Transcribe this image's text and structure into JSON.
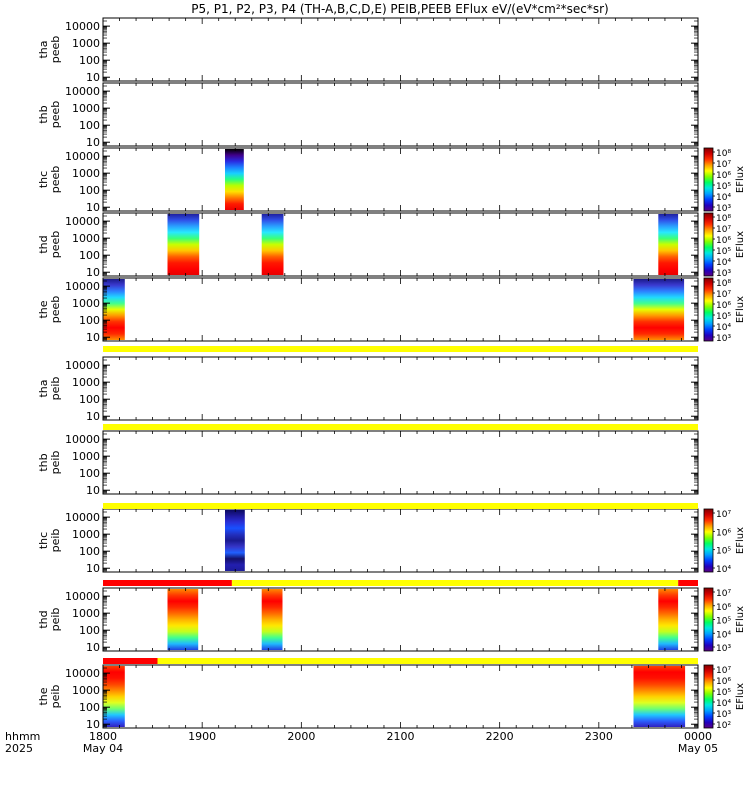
{
  "title": "P5, P1, P2, P3, P4 (TH-A,B,C,D,E) PEIB,PEEB EFlux eV/(eV*cm²*sec*sr)",
  "chart_data": {
    "type": "heatmap",
    "time_label_1": "hhmm",
    "time_label_2": "2025",
    "x_ticks": [
      "1800",
      "1900",
      "2000",
      "2100",
      "2200",
      "2300",
      "0000"
    ],
    "x_date_labels": [
      {
        "tick": "1800",
        "label": "May 04"
      },
      {
        "tick": "0000",
        "label": "May 05"
      }
    ],
    "x_range_hours": [
      18,
      24
    ],
    "y_scale": "log",
    "y_ticks": [
      "10",
      "100",
      "1000",
      "10000"
    ],
    "colorbar_label": "EFlux",
    "panels": [
      {
        "probe": "tha",
        "product": "peeb",
        "colorbar": null,
        "has_data": false,
        "data_windows": []
      },
      {
        "probe": "thb",
        "product": "peeb",
        "colorbar": null,
        "has_data": false,
        "data_windows": []
      },
      {
        "probe": "thc",
        "product": "peeb",
        "colorbar": [
          "10³",
          "10⁴",
          "10⁵",
          "10⁶",
          "10⁷",
          "10⁸"
        ],
        "has_data": true,
        "data_windows": [
          {
            "start": 19.23,
            "end": 19.42,
            "profile": "c"
          }
        ]
      },
      {
        "probe": "thd",
        "product": "peeb",
        "colorbar": [
          "10³",
          "10⁴",
          "10⁵",
          "10⁶",
          "10⁷",
          "10⁸"
        ],
        "has_data": true,
        "data_windows": [
          {
            "start": 18.65,
            "end": 18.97,
            "profile": "d"
          },
          {
            "start": 19.6,
            "end": 19.82,
            "profile": "d"
          },
          {
            "start": 23.6,
            "end": 23.8,
            "profile": "d"
          }
        ]
      },
      {
        "probe": "the",
        "product": "peeb",
        "colorbar": [
          "10³",
          "10⁴",
          "10⁵",
          "10⁶",
          "10⁷",
          "10⁸"
        ],
        "has_data": true,
        "data_windows": [
          {
            "start": 18.0,
            "end": 18.22,
            "profile": "e"
          },
          {
            "start": 23.35,
            "end": 23.86,
            "profile": "e"
          }
        ]
      },
      {
        "probe": "tha",
        "product": "peib",
        "colorbar": null,
        "has_data": false,
        "data_windows": []
      },
      {
        "probe": "thb",
        "product": "peib",
        "colorbar": null,
        "has_data": false,
        "data_windows": []
      },
      {
        "probe": "thc",
        "product": "peib",
        "colorbar": [
          "10⁴",
          "10⁵",
          "10⁶",
          "10⁷"
        ],
        "has_data": true,
        "data_windows": [
          {
            "start": 19.23,
            "end": 19.43,
            "profile": "ic"
          }
        ]
      },
      {
        "probe": "thd",
        "product": "peib",
        "colorbar": [
          "10³",
          "10⁴",
          "10⁵",
          "10⁶",
          "10⁷"
        ],
        "has_data": true,
        "data_windows": [
          {
            "start": 18.65,
            "end": 18.96,
            "profile": "id"
          },
          {
            "start": 19.6,
            "end": 19.81,
            "profile": "id"
          },
          {
            "start": 23.6,
            "end": 23.8,
            "profile": "id"
          }
        ]
      },
      {
        "probe": "the",
        "product": "peib",
        "colorbar": [
          "10²",
          "10³",
          "10⁴",
          "10⁵",
          "10⁶",
          "10⁷"
        ],
        "has_data": true,
        "data_windows": [
          {
            "start": 18.0,
            "end": 18.22,
            "profile": "ie"
          },
          {
            "start": 23.35,
            "end": 23.87,
            "profile": "ie"
          }
        ]
      }
    ],
    "status_bars": [
      {
        "after_panel": 5,
        "segments": [
          {
            "start": 18.0,
            "end": 24.0,
            "color": "#ffff00"
          }
        ]
      },
      {
        "after_panel": 6,
        "segments": [
          {
            "start": 18.0,
            "end": 24.0,
            "color": "#ffff00"
          }
        ]
      },
      {
        "after_panel": 7,
        "segments": [
          {
            "start": 18.0,
            "end": 24.0,
            "color": "#ffff00"
          }
        ]
      },
      {
        "after_panel": 8,
        "segments": [
          {
            "start": 18.0,
            "end": 19.3,
            "color": "#ff0000"
          },
          {
            "start": 19.3,
            "end": 23.8,
            "color": "#ffff00"
          },
          {
            "start": 23.8,
            "end": 24.0,
            "color": "#ff0000"
          }
        ]
      },
      {
        "after_panel": 9,
        "segments": [
          {
            "start": 18.0,
            "end": 18.55,
            "color": "#ff0000"
          },
          {
            "start": 18.55,
            "end": 24.0,
            "color": "#ffff00"
          }
        ]
      }
    ]
  }
}
